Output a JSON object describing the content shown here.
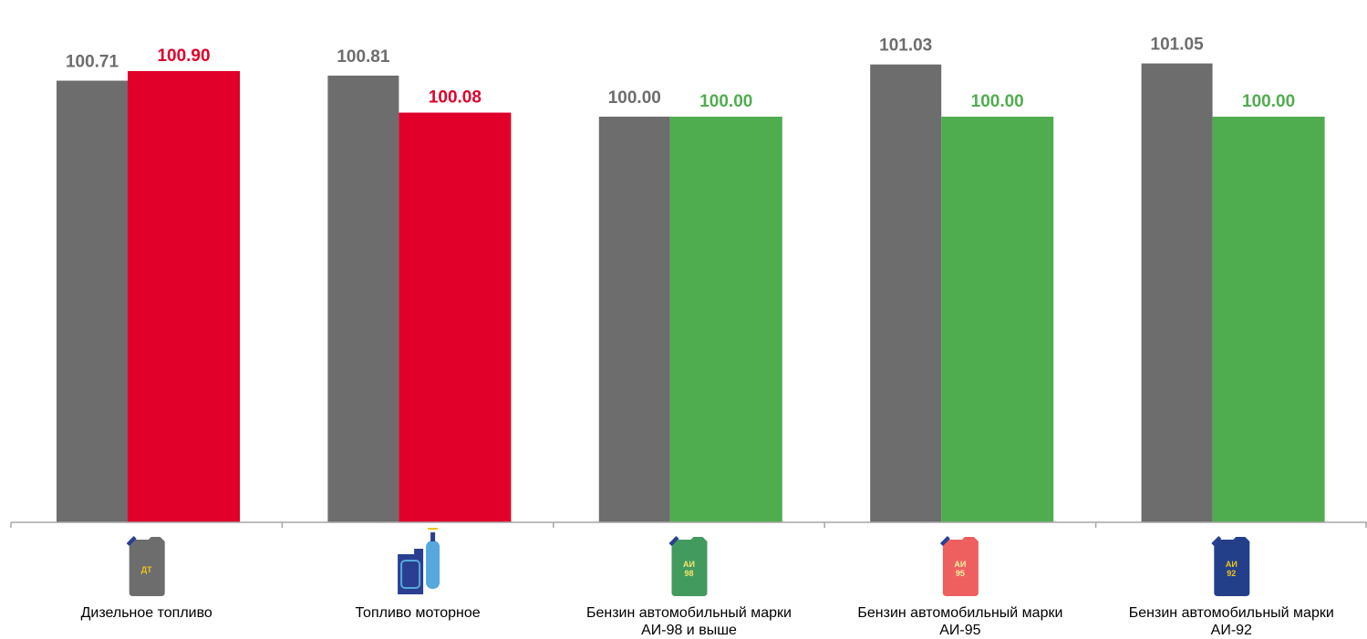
{
  "chart_data": {
    "type": "bar",
    "categories": [
      [
        "Дизельное топливо"
      ],
      [
        "Топливо моторное"
      ],
      [
        "Бензин автомобильный марки",
        "АИ-98 и выше"
      ],
      [
        "Бензин автомобильный марки",
        "АИ-95"
      ],
      [
        "Бензин автомобильный марки",
        "АИ-92"
      ]
    ],
    "series": [
      {
        "values": [
          100.71,
          100.81,
          100.0,
          101.03,
          101.05
        ],
        "color": "#6d6d6d",
        "label_color": "#6d6d6d"
      },
      {
        "values": [
          100.9,
          100.08,
          100.0,
          100.0,
          100.0
        ],
        "colors": [
          "#e0002a",
          "#e0002a",
          "#50ad4f",
          "#50ad4f",
          "#50ad4f"
        ],
        "label_colors": [
          "#e0002a",
          "#e0002a",
          "#50ad4f",
          "#50ad4f",
          "#50ad4f"
        ]
      }
    ],
    "value_labels": [
      [
        "100.71",
        "100.81",
        "100.00",
        "101.03",
        "101.05"
      ],
      [
        "100.90",
        "100.08",
        "100.00",
        "100.00",
        "100.00"
      ]
    ],
    "ylim": [
      92,
      101.6
    ],
    "grid": false,
    "legend": "none",
    "axis_color": "#a6a6a6"
  },
  "icons": [
    {
      "name": "diesel-canister-icon",
      "lines": [
        "ДТ"
      ],
      "body": "#6d6d6d",
      "text": "#f0c419"
    },
    {
      "name": "motor-fuel-canister-icon",
      "lines": [],
      "body": "#2a3f8f",
      "text": "#ffffff"
    },
    {
      "name": "ai98-canister-icon",
      "lines": [
        "АИ",
        "98"
      ],
      "body": "#439a5e",
      "text": "#f5e66a"
    },
    {
      "name": "ai95-canister-icon",
      "lines": [
        "АИ",
        "95"
      ],
      "body": "#ee5f60",
      "text": "#fff3a0"
    },
    {
      "name": "ai92-canister-icon",
      "lines": [
        "АИ",
        "92"
      ],
      "body": "#243f8a",
      "text": "#f0c419"
    }
  ]
}
